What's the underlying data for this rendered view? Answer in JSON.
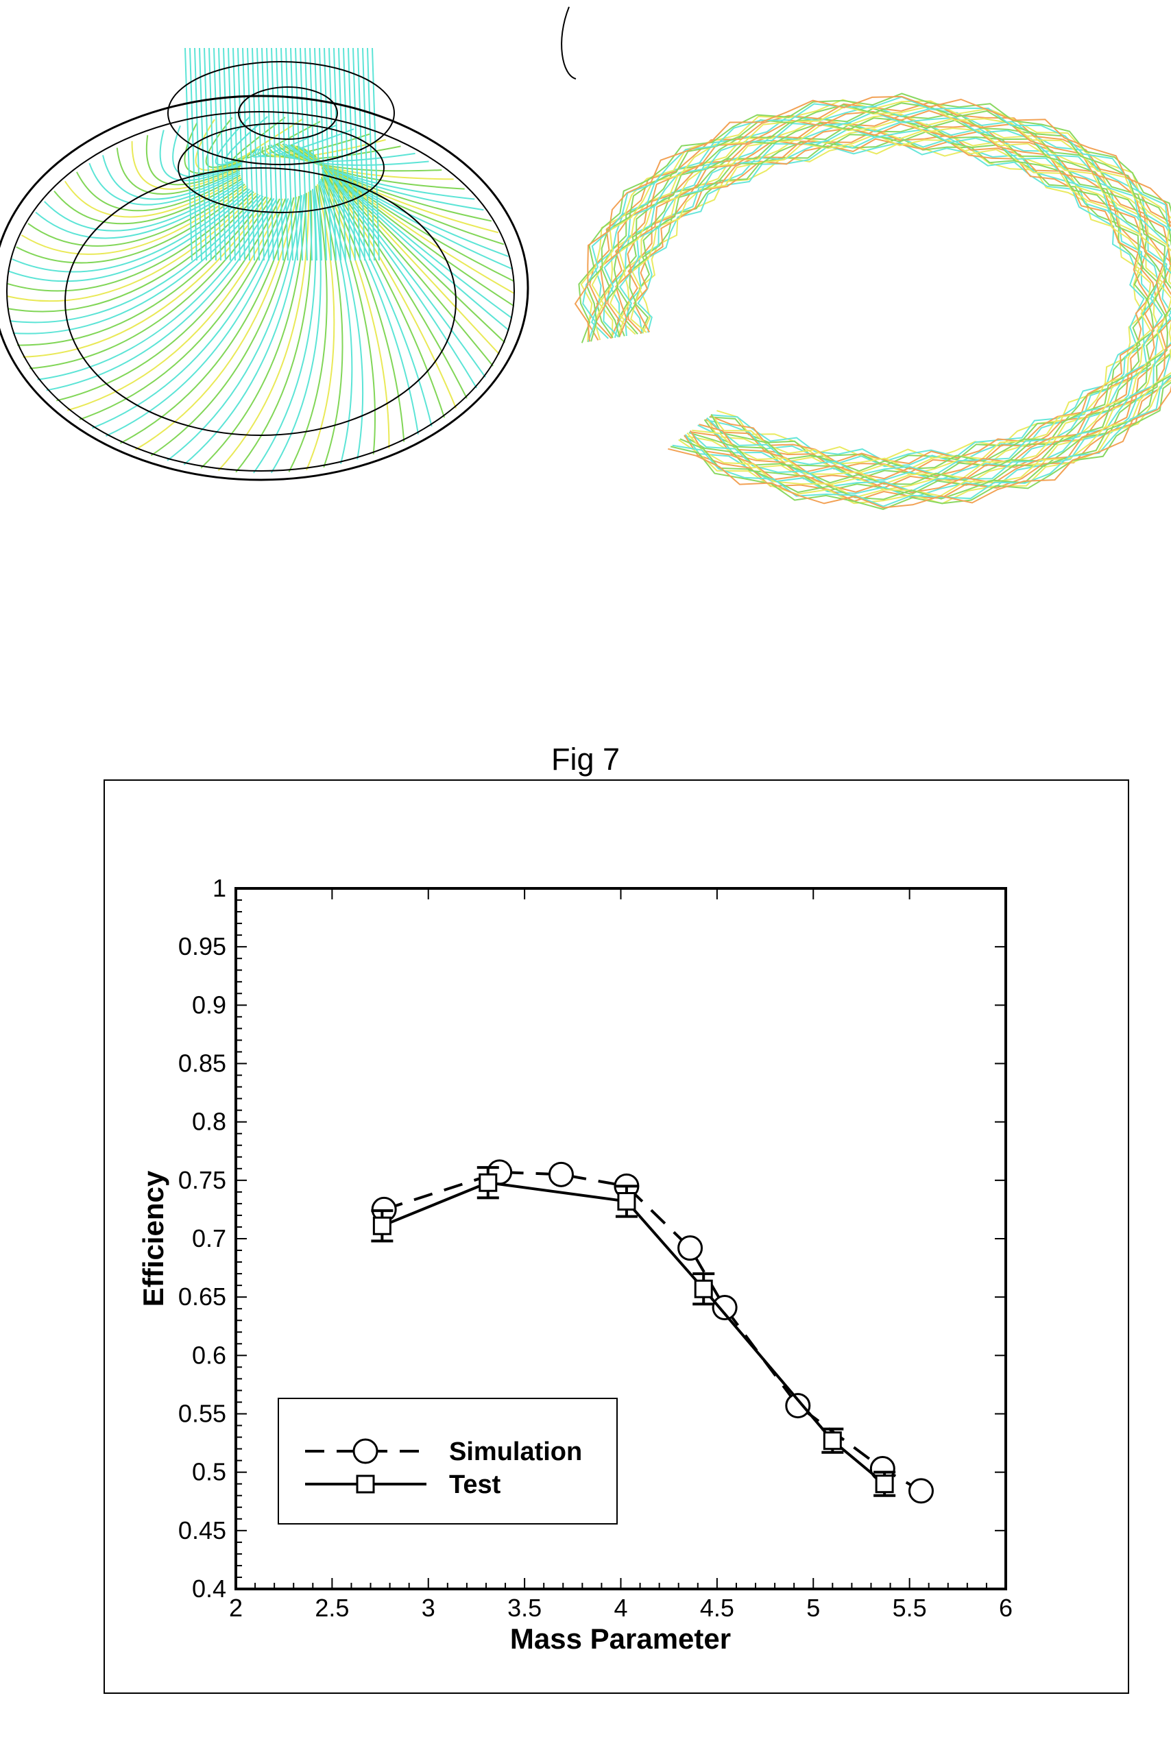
{
  "figure_caption": "Fig 7",
  "colors": {
    "streamline_cyan": "#40e0d0",
    "streamline_green": "#6ccf3a",
    "streamline_yellow": "#e6e63a",
    "streamline_orange": "#f08a2a",
    "outline": "#000000"
  },
  "chart_data": {
    "type": "line",
    "xlabel": "Mass Parameter",
    "ylabel": "Efficiency",
    "xlim": [
      2,
      6
    ],
    "ylim": [
      0.4,
      1
    ],
    "x_ticks": [
      "2",
      "2.5",
      "3",
      "3.5",
      "4",
      "4.5",
      "5",
      "5.5",
      "6"
    ],
    "y_ticks": [
      "0.4",
      "0.45",
      "0.5",
      "0.55",
      "0.6",
      "0.65",
      "0.7",
      "0.75",
      "0.8",
      "0.85",
      "0.9",
      "0.95",
      "1"
    ],
    "grid": false,
    "legend_placement": "bottom-left",
    "series": [
      {
        "name": "Simulation",
        "line_style": "dashed",
        "marker": "circle",
        "x": [
          2.77,
          3.37,
          3.69,
          4.03,
          4.36,
          4.54,
          4.92,
          5.36,
          5.56
        ],
        "y": [
          0.725,
          0.757,
          0.755,
          0.745,
          0.692,
          0.641,
          0.557,
          0.503,
          0.484
        ]
      },
      {
        "name": "Test",
        "line_style": "solid",
        "marker": "square",
        "error_bars": true,
        "x": [
          2.76,
          3.31,
          4.03,
          4.43,
          5.1,
          5.37
        ],
        "y": [
          0.711,
          0.748,
          0.732,
          0.657,
          0.527,
          0.49
        ],
        "err": [
          0.013,
          0.013,
          0.013,
          0.013,
          0.01,
          0.01
        ]
      }
    ]
  }
}
